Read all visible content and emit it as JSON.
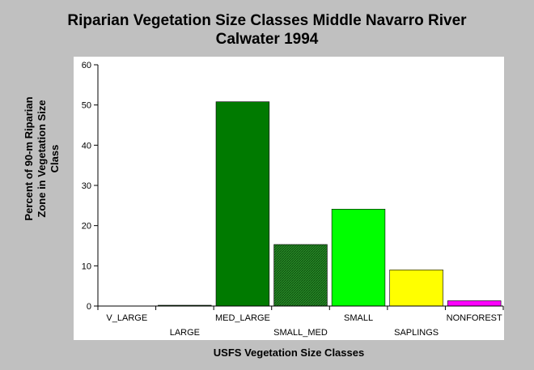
{
  "chart_data": {
    "type": "bar",
    "title": "Riparian Vegetation Size Classes Middle Navarro River",
    "subtitle": "Calwater 1994",
    "xlabel": "USFS Vegetation Size Classes",
    "ylabel_lines": [
      "Percent of 90-m Riparian",
      "Zone in Vegetation Size",
      "Class"
    ],
    "categories": [
      "V_LARGE",
      "LARGE",
      "MED_LARGE",
      "SMALL_MED",
      "SMALL",
      "SAPLINGS",
      "NONFOREST"
    ],
    "values": [
      0,
      0.2,
      50.8,
      15.3,
      24.1,
      9.0,
      1.3
    ],
    "bar_colors": [
      "#006400",
      "#006400",
      "#007a00",
      "#1a7a1a",
      "#00ff00",
      "#ffff00",
      "#ff00ff"
    ],
    "ylim": [
      0,
      60
    ],
    "yticks": [
      0,
      10,
      20,
      30,
      40,
      50,
      60
    ],
    "grid": false,
    "plot_background": "#ffffff"
  }
}
